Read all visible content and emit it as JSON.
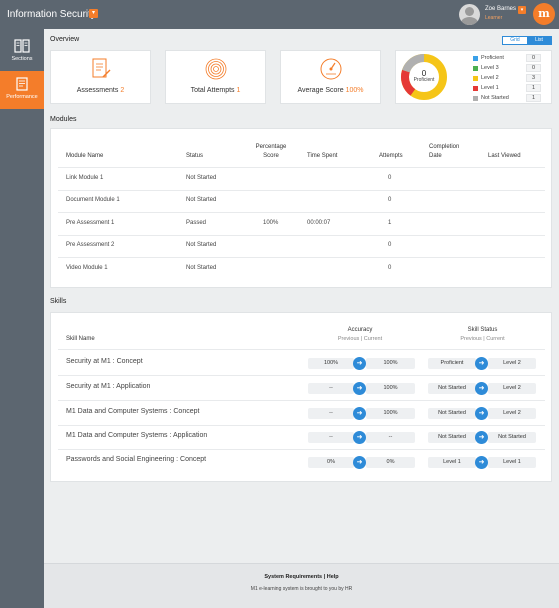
{
  "header": {
    "app_title": "Information Security",
    "title_dropdown": "▾",
    "user_name": "Zoe Barnes",
    "user_role": "Learner",
    "user_dropdown": "▾",
    "logo_letter": "m"
  },
  "sidebar": {
    "items": [
      {
        "label": "Sections",
        "icon": "book-icon"
      },
      {
        "label": "Performance",
        "icon": "report-icon"
      }
    ]
  },
  "overview": {
    "title": "Overview",
    "toggle_grid": "Grid",
    "toggle_list": "List",
    "assessments": {
      "label": "Assessments",
      "value": "2"
    },
    "attempts": {
      "label": "Total Attempts",
      "value": "1"
    },
    "avg_score": {
      "label": "Average Score",
      "value": "100%"
    },
    "donut": {
      "count": "0",
      "label": "Proficient"
    },
    "legend": [
      {
        "label": "Proficient",
        "count": "0",
        "color": "#3aa0e8"
      },
      {
        "label": "Level 3",
        "count": "0",
        "color": "#4caf50"
      },
      {
        "label": "Level 2",
        "count": "3",
        "color": "#f5c518"
      },
      {
        "label": "Level 1",
        "count": "1",
        "color": "#e53935"
      },
      {
        "label": "Not Started",
        "count": "1",
        "color": "#b0b0b0"
      }
    ]
  },
  "modules": {
    "title": "Modules",
    "headers": {
      "name": "Module Name",
      "status": "Status",
      "pct_line1": "Percentage",
      "pct_line2": "Score",
      "time": "Time Spent",
      "attempts": "Attempts",
      "completion_line1": "Completion",
      "completion_line2": "Date",
      "last_viewed": "Last Viewed"
    },
    "rows": [
      {
        "name": "Link Module 1",
        "status": "Not Started",
        "pct": "",
        "time": "",
        "attempts": "0"
      },
      {
        "name": "Document Module 1",
        "status": "Not Started",
        "pct": "",
        "time": "",
        "attempts": "0"
      },
      {
        "name": "Pre Assessment 1",
        "status": "Passed",
        "pct": "100%",
        "time": "00:00:07",
        "attempts": "1"
      },
      {
        "name": "Pre Assessment 2",
        "status": "Not Started",
        "pct": "",
        "time": "",
        "attempts": "0"
      },
      {
        "name": "Video Module 1",
        "status": "Not Started",
        "pct": "",
        "time": "",
        "attempts": "0"
      }
    ]
  },
  "skills": {
    "title": "Skills",
    "headers": {
      "name": "Skill Name",
      "accuracy": "Accuracy",
      "accuracy_sub": "Previous | Current",
      "status": "Skill Status",
      "status_sub": "Previous | Current"
    },
    "rows": [
      {
        "name": "Security at M1 : Concept",
        "acc_prev": "100%",
        "acc_cur": "100%",
        "st_prev": "Proficient",
        "st_cur": "Level 2"
      },
      {
        "name": "Security at M1 : Application",
        "acc_prev": "--",
        "acc_cur": "100%",
        "st_prev": "Not Started",
        "st_cur": "Level 2"
      },
      {
        "name": "M1 Data and Computer Systems : Concept",
        "acc_prev": "--",
        "acc_cur": "100%",
        "st_prev": "Not Started",
        "st_cur": "Level 2"
      },
      {
        "name": "M1 Data and Computer Systems : Application",
        "acc_prev": "--",
        "acc_cur": "--",
        "st_prev": "Not Started",
        "st_cur": "Not Started"
      },
      {
        "name": "Passwords and Social Engineering : Concept",
        "acc_prev": "0%",
        "acc_cur": "0%",
        "st_prev": "Level 1",
        "st_cur": "Level 1"
      }
    ]
  },
  "footer": {
    "link_requirements": "System Requirements",
    "separator": "|",
    "link_help": "Help",
    "copyright": "M1 e-learning system is brought to you by HR"
  }
}
